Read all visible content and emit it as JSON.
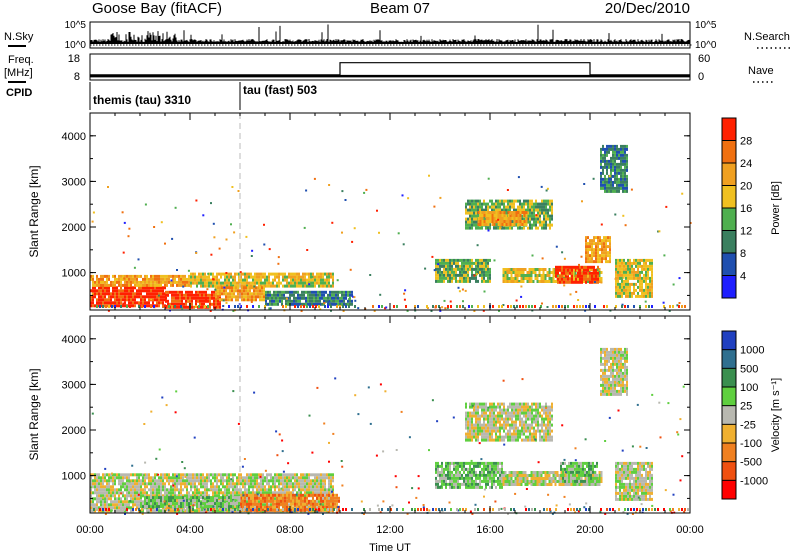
{
  "header": {
    "station": "Goose Bay (fitACF)",
    "beam": "Beam 07",
    "date": "20/Dec/2010"
  },
  "noise_panel": {
    "left_label": "N.Sky",
    "right_label": "N.Search",
    "left_ticks": [
      "10^5",
      "10^0"
    ],
    "right_ticks": [
      "10^5",
      "10^0"
    ]
  },
  "freq_panel": {
    "left_label_1": "Freq.",
    "left_label_2": "[MHz]",
    "right_label": "Nave",
    "left_ticks": [
      "18",
      "8"
    ],
    "right_ticks": [
      "60",
      "0"
    ],
    "freq_level": 0.15,
    "nave_segments": [
      {
        "start_h": 0,
        "end_h": 10,
        "nave": 12
      },
      {
        "start_h": 10,
        "end_h": 20,
        "nave": 40
      },
      {
        "start_h": 20,
        "end_h": 24,
        "nave": 12
      }
    ]
  },
  "cpid": {
    "label": "CPID",
    "modes": [
      {
        "text": "themis (tau) 3310",
        "start_h": 0
      },
      {
        "text": "tau (fast) 503",
        "start_h": 6
      }
    ]
  },
  "axes": {
    "ylabel": "Slant Range [km]",
    "xlabel": "Time UT",
    "yticks": [
      "1000",
      "2000",
      "3000",
      "4000"
    ],
    "xticks": [
      "00:00",
      "04:00",
      "08:00",
      "12:00",
      "16:00",
      "20:00",
      "00:00"
    ],
    "ylim": [
      180,
      4500
    ],
    "xlim_hours": [
      0,
      24
    ]
  },
  "colors": {
    "power": [
      "#1f1fff",
      "#1f4faf",
      "#3a7f5f",
      "#4faf4f",
      "#f0c020",
      "#f0a020",
      "#f07010",
      "#ff2000"
    ],
    "velocity": [
      "#2040c0",
      "#2f6f8f",
      "#3a8f4f",
      "#5fcf3f",
      "#b8b8b0",
      "#f0b030",
      "#f08020",
      "#f05010",
      "#ff0000"
    ]
  },
  "chart_data": [
    {
      "type": "heatmap",
      "title": "",
      "xlabel": "",
      "ylabel": "Slant Range [km]",
      "colorbar_label": "Power [dB]",
      "colorbar_ticks": [
        "4",
        "8",
        "12",
        "16",
        "20",
        "24",
        "28"
      ],
      "regions": [
        {
          "t0": 0.0,
          "t1": 3.0,
          "r0": 250,
          "r1": 700,
          "level": 7
        },
        {
          "t0": 3.0,
          "t1": 5.2,
          "r0": 250,
          "r1": 600,
          "level": 7
        },
        {
          "t0": 0.0,
          "t1": 4.0,
          "r0": 700,
          "r1": 950,
          "level": 5
        },
        {
          "t0": 4.0,
          "t1": 9.7,
          "r0": 700,
          "r1": 1000,
          "level": 4
        },
        {
          "t0": 5.0,
          "t1": 7.0,
          "r0": 400,
          "r1": 700,
          "level": 5
        },
        {
          "t0": 7.0,
          "t1": 10.5,
          "r0": 300,
          "r1": 600,
          "level": 2
        },
        {
          "t0": 15.0,
          "t1": 18.5,
          "r0": 1950,
          "r1": 2600,
          "level": 3
        },
        {
          "t0": 15.5,
          "t1": 17.5,
          "r0": 2050,
          "r1": 2350,
          "level": 5
        },
        {
          "t0": 13.8,
          "t1": 16.0,
          "r0": 800,
          "r1": 1300,
          "level": 3
        },
        {
          "t0": 16.5,
          "t1": 20.5,
          "r0": 800,
          "r1": 1100,
          "level": 4
        },
        {
          "t0": 18.6,
          "t1": 20.3,
          "r0": 820,
          "r1": 1150,
          "level": 7
        },
        {
          "t0": 19.8,
          "t1": 20.8,
          "r0": 1250,
          "r1": 1800,
          "level": 5
        },
        {
          "t0": 21.0,
          "t1": 22.5,
          "r0": 500,
          "r1": 1300,
          "level": 4
        },
        {
          "t0": 20.4,
          "t1": 21.5,
          "r0": 2800,
          "r1": 3800,
          "level": 2
        }
      ]
    },
    {
      "type": "heatmap",
      "title": "",
      "xlabel": "Time UT",
      "ylabel": "Slant Range [km]",
      "colorbar_label": "Velocity [m s⁻¹]",
      "colorbar_ticks": [
        "1000",
        "500",
        "100",
        "25",
        "-25",
        "-100",
        "-500",
        "-1000"
      ],
      "regions": [
        {
          "t0": 0.0,
          "t1": 9.7,
          "r0": 250,
          "r1": 1050,
          "level": 4
        },
        {
          "t0": 2.0,
          "t1": 6.0,
          "r0": 300,
          "r1": 550,
          "level": 3
        },
        {
          "t0": 6.0,
          "t1": 10.0,
          "r0": 250,
          "r1": 600,
          "level": 6
        },
        {
          "t0": 15.0,
          "t1": 18.5,
          "r0": 1800,
          "r1": 2600,
          "level": 4
        },
        {
          "t0": 13.8,
          "t1": 16.5,
          "r0": 750,
          "r1": 1300,
          "level": 3
        },
        {
          "t0": 16.5,
          "t1": 20.5,
          "r0": 800,
          "r1": 1100,
          "level": 4
        },
        {
          "t0": 18.8,
          "t1": 20.3,
          "r0": 900,
          "r1": 1300,
          "level": 3
        },
        {
          "t0": 21.0,
          "t1": 22.5,
          "r0": 500,
          "r1": 1300,
          "level": 4
        },
        {
          "t0": 20.4,
          "t1": 21.5,
          "r0": 2800,
          "r1": 3800,
          "level": 4
        }
      ]
    }
  ]
}
